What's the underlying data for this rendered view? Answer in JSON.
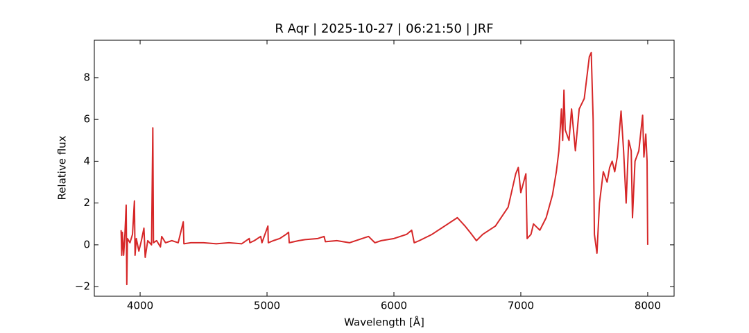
{
  "chart_data": {
    "type": "line",
    "title": "R Aqr | 2025-10-27 | 06:21:50 | JRF",
    "xlabel": "Wavelength [Å]",
    "ylabel": "Relative flux",
    "x": [
      3850,
      3855,
      3860,
      3870,
      3880,
      3890,
      3895,
      3900,
      3920,
      3940,
      3955,
      3960,
      3970,
      3990,
      4010,
      4030,
      4040,
      4060,
      4090,
      4100,
      4105,
      4130,
      4160,
      4170,
      4200,
      4250,
      4300,
      4340,
      4345,
      4400,
      4500,
      4600,
      4700,
      4800,
      4860,
      4865,
      4900,
      4950,
      4960,
      5007,
      5010,
      5050,
      5100,
      5150,
      5170,
      5175,
      5250,
      5300,
      5400,
      5450,
      5460,
      5550,
      5650,
      5750,
      5800,
      5850,
      5900,
      6000,
      6100,
      6140,
      6160,
      6200,
      6300,
      6400,
      6500,
      6560,
      6600,
      6650,
      6700,
      6800,
      6900,
      6960,
      6980,
      7000,
      7040,
      7050,
      7080,
      7100,
      7150,
      7200,
      7250,
      7280,
      7300,
      7320,
      7330,
      7340,
      7350,
      7380,
      7400,
      7430,
      7460,
      7500,
      7540,
      7555,
      7570,
      7580,
      7600,
      7620,
      7650,
      7680,
      7700,
      7720,
      7740,
      7760,
      7790,
      7810,
      7830,
      7850,
      7870,
      7880,
      7900,
      7930,
      7960,
      7970,
      7985,
      7995,
      8000
    ],
    "series": [
      {
        "color": "#d62728",
        "values": [
          0.7,
          -0.5,
          0.6,
          -0.5,
          0.5,
          1.9,
          -1.9,
          0.3,
          0.1,
          0.5,
          2.1,
          -0.5,
          0.3,
          -0.3,
          0.2,
          0.8,
          -0.6,
          0.2,
          0.0,
          5.6,
          0.1,
          0.2,
          -0.1,
          0.4,
          0.1,
          0.2,
          0.1,
          1.1,
          0.05,
          0.1,
          0.1,
          0.05,
          0.1,
          0.05,
          0.3,
          0.1,
          0.2,
          0.4,
          0.1,
          0.9,
          0.1,
          0.2,
          0.3,
          0.5,
          0.6,
          0.1,
          0.2,
          0.25,
          0.3,
          0.4,
          0.15,
          0.2,
          0.1,
          0.3,
          0.4,
          0.1,
          0.2,
          0.3,
          0.5,
          0.7,
          0.1,
          0.2,
          0.5,
          0.9,
          1.3,
          0.9,
          0.6,
          0.2,
          0.5,
          0.9,
          1.8,
          3.4,
          3.7,
          2.5,
          3.4,
          0.3,
          0.5,
          1.0,
          0.7,
          1.3,
          2.4,
          3.5,
          4.5,
          6.5,
          5.0,
          7.4,
          5.5,
          5.0,
          6.5,
          4.5,
          6.5,
          7.0,
          9.0,
          9.2,
          6.0,
          0.5,
          -0.4,
          2.0,
          3.5,
          3.0,
          3.7,
          4.0,
          3.5,
          4.2,
          6.4,
          4.5,
          2.0,
          5.0,
          4.5,
          1.3,
          4.0,
          4.5,
          6.2,
          4.2,
          5.3,
          4.0,
          0.0
        ]
      }
    ],
    "xlim": [
      3639,
      8208
    ],
    "ylim": [
      -2.46,
      9.79
    ],
    "xticks": [
      4000,
      5000,
      6000,
      7000,
      8000
    ],
    "yticks": [
      {
        "value": -2,
        "label": "−2"
      },
      0,
      2,
      4,
      6,
      8
    ]
  }
}
